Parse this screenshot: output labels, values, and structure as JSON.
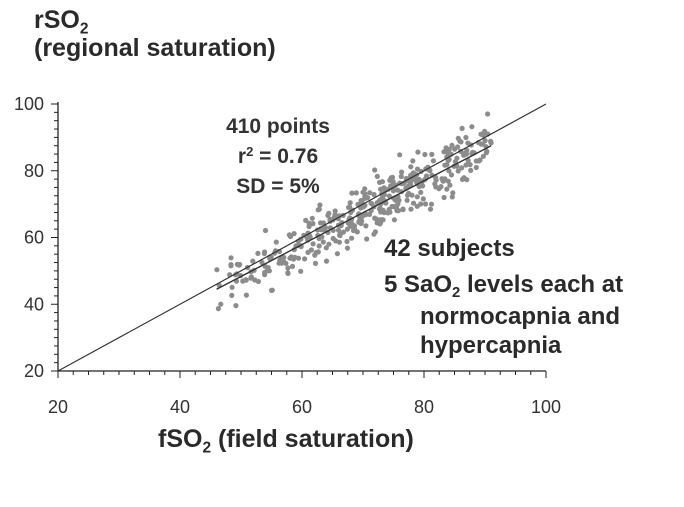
{
  "chart_data": {
    "type": "scatter",
    "ylabel": {
      "pre": "rSO",
      "sub": "2",
      "post": "(regional saturation)"
    },
    "xlabel": {
      "pre": "fSO",
      "sub": "2",
      "post": " (field saturation)"
    },
    "xlim": [
      20,
      100
    ],
    "ylim": [
      20,
      100
    ],
    "xticks": [
      20,
      40,
      60,
      80,
      100
    ],
    "yticks": [
      20,
      40,
      60,
      80,
      100
    ],
    "stats": {
      "points": "410 points",
      "r2_pre": "r",
      "r2_sup": "2",
      "r2_post": " = 0.76",
      "sd": "SD = 5%"
    },
    "annotations": {
      "subjects": "42 subjects",
      "levels_pre": "5  SaO",
      "levels_sub": "2",
      "levels_post": " levels each at",
      "line2": "normocapnia and",
      "line3": "hypercapnia"
    },
    "identity_line": {
      "x": [
        20,
        100
      ],
      "y": [
        20,
        100
      ]
    },
    "regression_line": {
      "x": [
        46,
        91
      ],
      "y": [
        44.5,
        87.5
      ]
    },
    "point_count": 410,
    "point_x_range": [
      46,
      91
    ],
    "colors": {
      "points": "#8c8c8c",
      "axes": "#222222",
      "lines": "#333333"
    }
  }
}
